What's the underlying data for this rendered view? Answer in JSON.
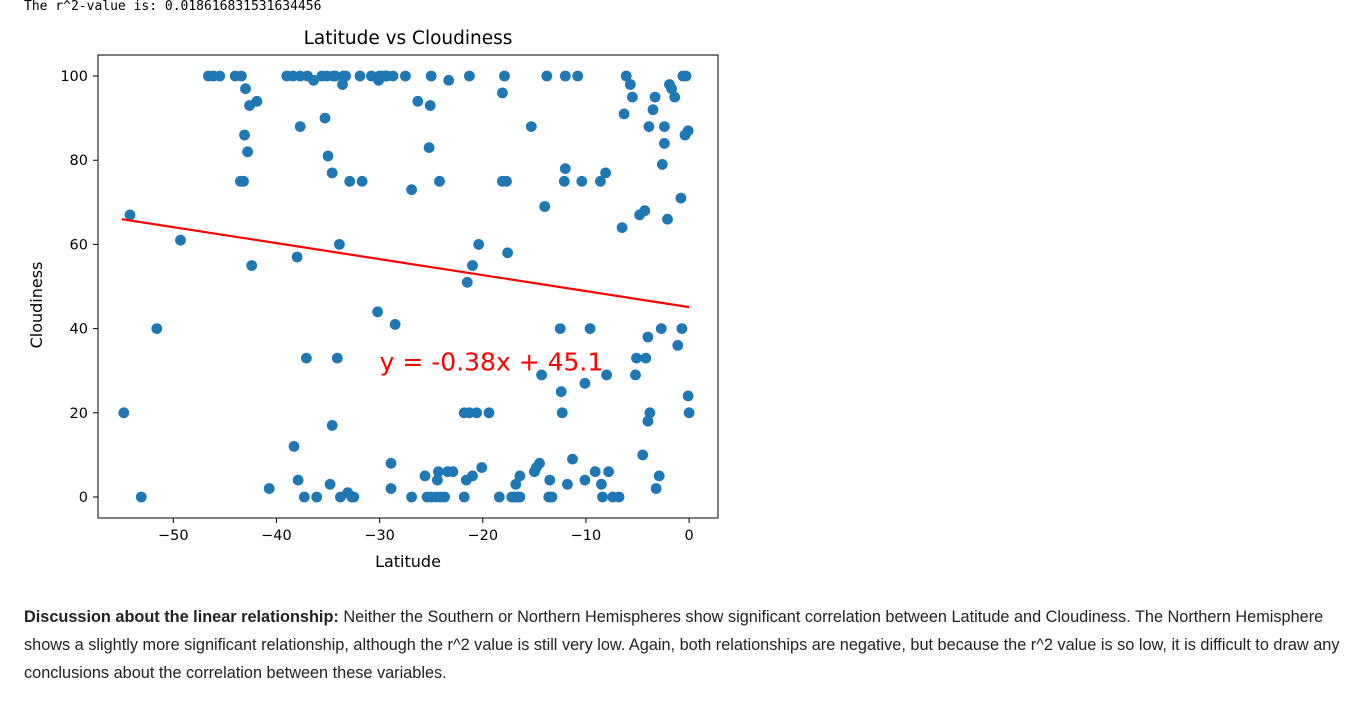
{
  "output": {
    "r_squared_text": "The r^2-value is: 0.018616831531634456"
  },
  "discussion": {
    "heading": "Discussion about the linear relationship:",
    "body": "Neither the Southern or Northern Hemispheres show significant correlation between Latitude and Cloudiness. The Northern Hemisphere shows a slightly more significant relationship, although the r^2 value is still very low. Again, both relationships are negative, but because the r^2 value is so low, it is difficult to draw any conclusions about the correlation between these variables."
  },
  "chart_data": {
    "type": "scatter",
    "title": "Latitude vs Cloudiness",
    "xlabel": "Latitude",
    "ylabel": "Cloudiness",
    "xlim": [
      -57.3,
      2.8
    ],
    "ylim": [
      -5,
      105
    ],
    "x_ticks": [
      -50,
      -40,
      -30,
      -20,
      -10,
      0
    ],
    "x_tick_labels": [
      "−50",
      "−40",
      "−30",
      "−20",
      "−10",
      "0"
    ],
    "y_ticks": [
      0,
      20,
      40,
      60,
      80,
      100
    ],
    "y_tick_labels": [
      "0",
      "20",
      "40",
      "60",
      "80",
      "100"
    ],
    "grid": false,
    "point_color": "#1f77b4",
    "regression": {
      "slope": -0.38,
      "intercept": 45.1,
      "x_range": [
        -55,
        0
      ],
      "color": "#ff0000",
      "label": "y = -0.38x + 45.1",
      "label_anchor": [
        -30,
        30
      ]
    },
    "points": [
      [
        -54.8,
        20
      ],
      [
        -54.2,
        67
      ],
      [
        -53.1,
        0
      ],
      [
        -51.6,
        40
      ],
      [
        -49.3,
        61
      ],
      [
        -46.6,
        100
      ],
      [
        -46.1,
        100
      ],
      [
        -45.5,
        100
      ],
      [
        -44,
        100
      ],
      [
        -43.4,
        100
      ],
      [
        -43.5,
        75
      ],
      [
        -43.2,
        75
      ],
      [
        -43.1,
        86
      ],
      [
        -43,
        97
      ],
      [
        -42.8,
        82
      ],
      [
        -42.6,
        93
      ],
      [
        -42.4,
        55
      ],
      [
        -41.9,
        94
      ],
      [
        -40.7,
        2
      ],
      [
        -39,
        100
      ],
      [
        -38.4,
        100
      ],
      [
        -38.3,
        12
      ],
      [
        -38,
        57
      ],
      [
        -37.9,
        4
      ],
      [
        -37.7,
        88
      ],
      [
        -37.7,
        100
      ],
      [
        -37.3,
        0
      ],
      [
        -37.1,
        33
      ],
      [
        -37,
        100
      ],
      [
        -36.4,
        99
      ],
      [
        -36.1,
        0
      ],
      [
        -35.6,
        100
      ],
      [
        -35.3,
        90
      ],
      [
        -35.1,
        100
      ],
      [
        -35,
        81
      ],
      [
        -34.8,
        3
      ],
      [
        -34.6,
        77
      ],
      [
        -34.6,
        17
      ],
      [
        -34.5,
        100
      ],
      [
        -34.3,
        100
      ],
      [
        -34.1,
        33
      ],
      [
        -33.9,
        60
      ],
      [
        -33.8,
        0
      ],
      [
        -33.6,
        98
      ],
      [
        -33.5,
        100
      ],
      [
        -33.3,
        100
      ],
      [
        -33.1,
        1
      ],
      [
        -32.9,
        75
      ],
      [
        -32.7,
        0
      ],
      [
        -32.5,
        0
      ],
      [
        -31.9,
        100
      ],
      [
        -31.7,
        75
      ],
      [
        -30.8,
        100
      ],
      [
        -30.2,
        44
      ],
      [
        -30.1,
        99
      ],
      [
        -30,
        100
      ],
      [
        -29.8,
        100
      ],
      [
        -29.3,
        100
      ],
      [
        -29.5,
        100
      ],
      [
        -28.9,
        2
      ],
      [
        -28.9,
        8
      ],
      [
        -28.7,
        100
      ],
      [
        -28.5,
        41
      ],
      [
        -27.5,
        100
      ],
      [
        -26.9,
        0
      ],
      [
        -26.9,
        73
      ],
      [
        -26.3,
        94
      ],
      [
        -25.6,
        5
      ],
      [
        -25.4,
        0
      ],
      [
        -25.2,
        83
      ],
      [
        -25.1,
        93
      ],
      [
        -25,
        100
      ],
      [
        -25,
        0
      ],
      [
        -24.5,
        0
      ],
      [
        -24.4,
        4
      ],
      [
        -24.3,
        6
      ],
      [
        -24.2,
        75
      ],
      [
        -24.1,
        0
      ],
      [
        -23.7,
        0
      ],
      [
        -23.4,
        6
      ],
      [
        -23.3,
        99
      ],
      [
        -22.9,
        6
      ],
      [
        -21.8,
        0
      ],
      [
        -21.8,
        20
      ],
      [
        -21.6,
        4
      ],
      [
        -21.5,
        51
      ],
      [
        -21.3,
        20
      ],
      [
        -21.3,
        100
      ],
      [
        -21,
        5
      ],
      [
        -21,
        55
      ],
      [
        -20.6,
        20
      ],
      [
        -20.4,
        60
      ],
      [
        -20.1,
        7
      ],
      [
        -19.4,
        20
      ],
      [
        -18.4,
        0
      ],
      [
        -18.1,
        75
      ],
      [
        -18.1,
        96
      ],
      [
        -17.9,
        100
      ],
      [
        -17.7,
        75
      ],
      [
        -17.6,
        58
      ],
      [
        -17.2,
        0
      ],
      [
        -16.9,
        0
      ],
      [
        -16.8,
        3
      ],
      [
        -16.6,
        0
      ],
      [
        -16.4,
        0
      ],
      [
        -16.4,
        5
      ],
      [
        -15.3,
        88
      ],
      [
        -15,
        6
      ],
      [
        -14.8,
        7
      ],
      [
        -14.5,
        8
      ],
      [
        -14.3,
        29
      ],
      [
        -14,
        69
      ],
      [
        -13.8,
        100
      ],
      [
        -13.6,
        0
      ],
      [
        -13.5,
        4
      ],
      [
        -13.3,
        0
      ],
      [
        -12.5,
        40
      ],
      [
        -12.4,
        25
      ],
      [
        -12.3,
        20
      ],
      [
        -12.1,
        75
      ],
      [
        -12,
        100
      ],
      [
        -12,
        78
      ],
      [
        -11.8,
        3
      ],
      [
        -11.3,
        9
      ],
      [
        -10.8,
        100
      ],
      [
        -10.4,
        75
      ],
      [
        -10.1,
        4
      ],
      [
        -10.1,
        27
      ],
      [
        -9.6,
        40
      ],
      [
        -9.1,
        6
      ],
      [
        -8.6,
        75
      ],
      [
        -8.5,
        3
      ],
      [
        -8.4,
        0
      ],
      [
        -8.1,
        77
      ],
      [
        -8,
        29
      ],
      [
        -7.8,
        6
      ],
      [
        -7.4,
        0
      ],
      [
        -6.8,
        0
      ],
      [
        -6.5,
        64
      ],
      [
        -6.3,
        91
      ],
      [
        -6.1,
        100
      ],
      [
        -5.7,
        98
      ],
      [
        -5.5,
        95
      ],
      [
        -5.2,
        29
      ],
      [
        -5.1,
        33
      ],
      [
        -4.8,
        67
      ],
      [
        -4.5,
        10
      ],
      [
        -4.3,
        68
      ],
      [
        -4.2,
        33
      ],
      [
        -4,
        38
      ],
      [
        -4,
        18
      ],
      [
        -3.9,
        88
      ],
      [
        -3.8,
        20
      ],
      [
        -3.5,
        92
      ],
      [
        -3.3,
        95
      ],
      [
        -3.2,
        2
      ],
      [
        -2.9,
        5
      ],
      [
        -2.7,
        40
      ],
      [
        -2.6,
        79
      ],
      [
        -2.4,
        88
      ],
      [
        -2.4,
        84
      ],
      [
        -2.1,
        66
      ],
      [
        -1.9,
        98
      ],
      [
        -1.7,
        97
      ],
      [
        -1.4,
        95
      ],
      [
        -1.1,
        36
      ],
      [
        -0.8,
        71
      ],
      [
        -0.7,
        40
      ],
      [
        -0.6,
        100
      ],
      [
        -0.4,
        86
      ],
      [
        -0.3,
        100
      ],
      [
        -0.1,
        87
      ],
      [
        -0.1,
        24
      ],
      [
        0,
        20
      ]
    ]
  }
}
